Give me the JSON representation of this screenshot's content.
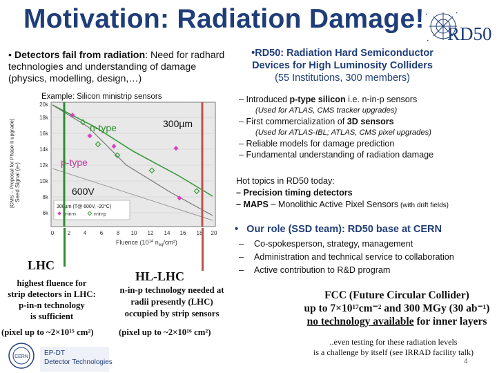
{
  "title": "Motivation: Radiation Damage!",
  "logo": {
    "text": "RD50"
  },
  "left_bullet": {
    "lead": "Detectors fail from radiation",
    "rest": ": Need for radhard technologies and understanding of damage (physics, modelling, design,…)"
  },
  "right_title": {
    "line1": "•RD50: Radiation Hard Semiconductor",
    "line2": "Devices for High Luminosity Colliders",
    "line3": "(55 Institutions, 300 members)"
  },
  "chart": {
    "caption": "Example: Silicon ministrip sensors",
    "ylabel": "Seed Signal (e-)",
    "side_label": "[CMS – Proposal for Phase II upgrade]",
    "xlabel": "Fluence (10",
    "xlabel_exp": "14",
    "xlabel_unit": " n",
    "xlabel_sub": "eq",
    "xlabel_end": "/cm²)",
    "xticks": [
      "0",
      "2",
      "4",
      "6",
      "8",
      "10",
      "12",
      "14",
      "16",
      "18",
      "20"
    ],
    "yticks": [
      "6k",
      "8k",
      "10k",
      "12k",
      "14k",
      "16k",
      "18k",
      "20k"
    ],
    "label_ntype": "n-type",
    "label_thickness": "300µm",
    "label_ptype": "p-type",
    "label_voltage": "600V",
    "legend_line1": "300µm (T@ 600V, -20°C)",
    "legend_pin": "p-in-n",
    "legend_nin": "n-in-p"
  },
  "right_list": {
    "item1_pre": "– Introduced ",
    "item1_bold": "p-type silicon",
    "item1_post": " i.e. n-in-p sensors",
    "item1_note": "(Used for ATLAS, CMS tracker upgrades)",
    "item2_pre": "– First commercialization of ",
    "item2_bold": "3D sensors",
    "item2_note": "(Used for ATLAS-IBL; ATLAS, CMS pixel upgrades)",
    "item3": "– Reliable models for damage prediction",
    "item4": "– Fundamental understanding of radiation damage"
  },
  "hot_topics": {
    "head": "Hot topics in RD50 today:",
    "item1": "– Precision timing detectors",
    "item2_bold": "– MAPS",
    "item2_rest": " – Monolithic Active Pixel Sensors",
    "item2_small": " (with drift fields)"
  },
  "role": {
    "head": "Our role (SSD team): RD50 base at CERN",
    "items": [
      "Co-spokesperson, strategy, management",
      "Administration and technical service to collaboration",
      "Active contribution to R&D program"
    ]
  },
  "lhc": {
    "title": "LHC",
    "line1": "highest fluence for",
    "line2": "strip detectors in LHC:",
    "line3": "p-in-n technology",
    "line4": "is sufficient",
    "pixel": "(pixel up to ~2×10¹⁵ cm²)"
  },
  "hllhc": {
    "title": "HL-LHC",
    "line1": "n-in-p technology needed at",
    "line2": "radii presently (LHC)",
    "line3": "occupied by strip sensors",
    "pixel": "(pixel up to ~2×10¹⁶ cm²)"
  },
  "fcc": {
    "line1": "FCC (Future Circular Collider)",
    "line2": "up to 7×10¹⁷cm⁻² and 300 MGy (30 ab⁻¹)",
    "line3_u": "no technology available",
    "line3_rest": " for inner layers"
  },
  "even": {
    "line1": "..even testing for these radiation levels",
    "line2": "is a challenge by itself (see IRRAD facility talk)"
  },
  "footer": {
    "org1": "EP-DT",
    "org2": "Detector Technologies",
    "cern": "CERN"
  },
  "page_number": "4",
  "colors": {
    "title": "#1f3d78",
    "green": "#2e8b2e",
    "red": "#c0504d",
    "plot_bg": "#e8e8e8"
  }
}
